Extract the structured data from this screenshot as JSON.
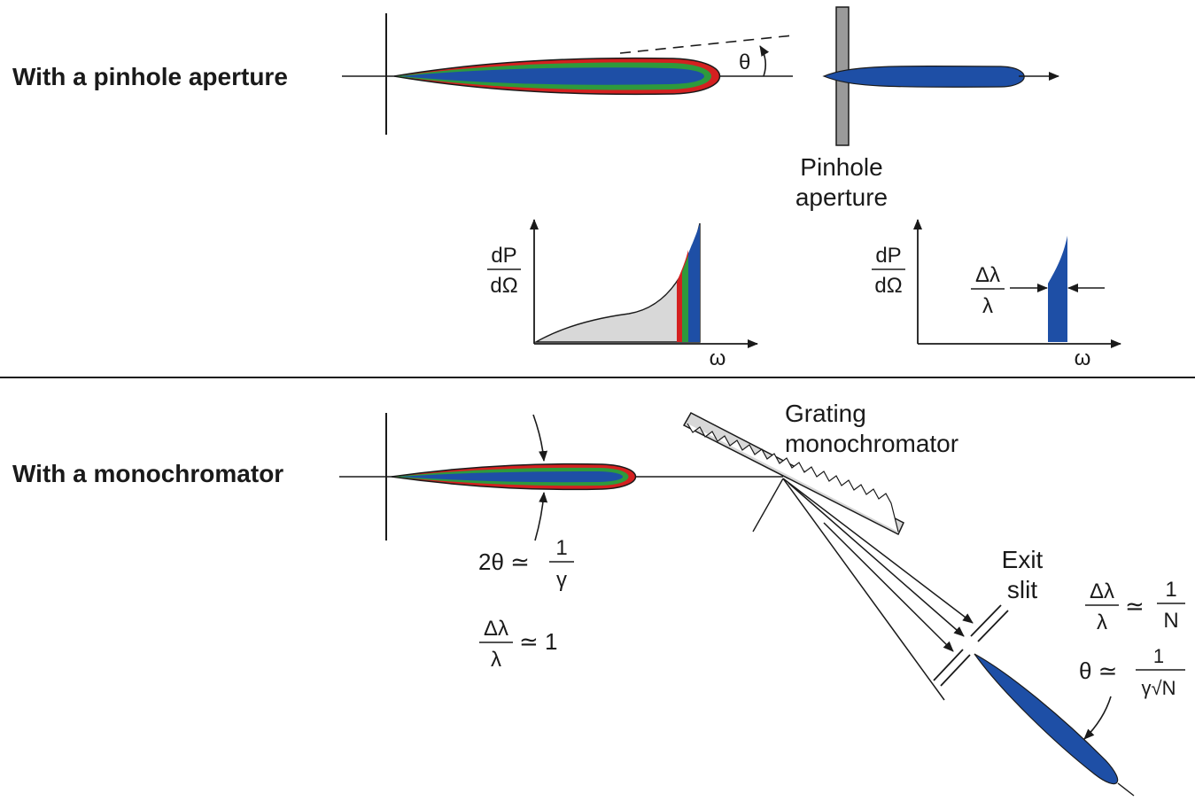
{
  "top": {
    "label": "With a pinhole aperture",
    "theta": "θ",
    "pinhole_line1": "Pinhole",
    "pinhole_line2": "aperture",
    "plot_left": {
      "y_num": "dP",
      "y_den": "dΩ",
      "x_label": "ω"
    },
    "plot_right": {
      "y_num": "dP",
      "y_den": "dΩ",
      "x_label": "ω",
      "bw_num": "Δλ",
      "bw_den": "λ"
    }
  },
  "bottom": {
    "label": "With a monochromator",
    "cone_lhs": "2θ ≃",
    "cone_num": "1",
    "cone_den": "γ",
    "bw_num": "Δλ",
    "bw_den": "λ",
    "bw_rhs": "≃ 1",
    "grating_line1": "Grating",
    "grating_line2": "monochromator",
    "slit_line1": "Exit",
    "slit_line2": "slit",
    "out_bw_num": "Δλ",
    "out_bw_den": "λ",
    "out_bw_eq": "≃",
    "out_bw_rhs_num": "1",
    "out_bw_rhs_den": "N",
    "out_theta_lhs": "θ ≃",
    "out_theta_num": "1",
    "out_theta_den": "γ√N"
  },
  "colors": {
    "red": "#d42020",
    "green": "#2e9a3c",
    "blue": "#1e4fa6",
    "gray": "#d8d8d8",
    "line": "#1a1a1a"
  }
}
